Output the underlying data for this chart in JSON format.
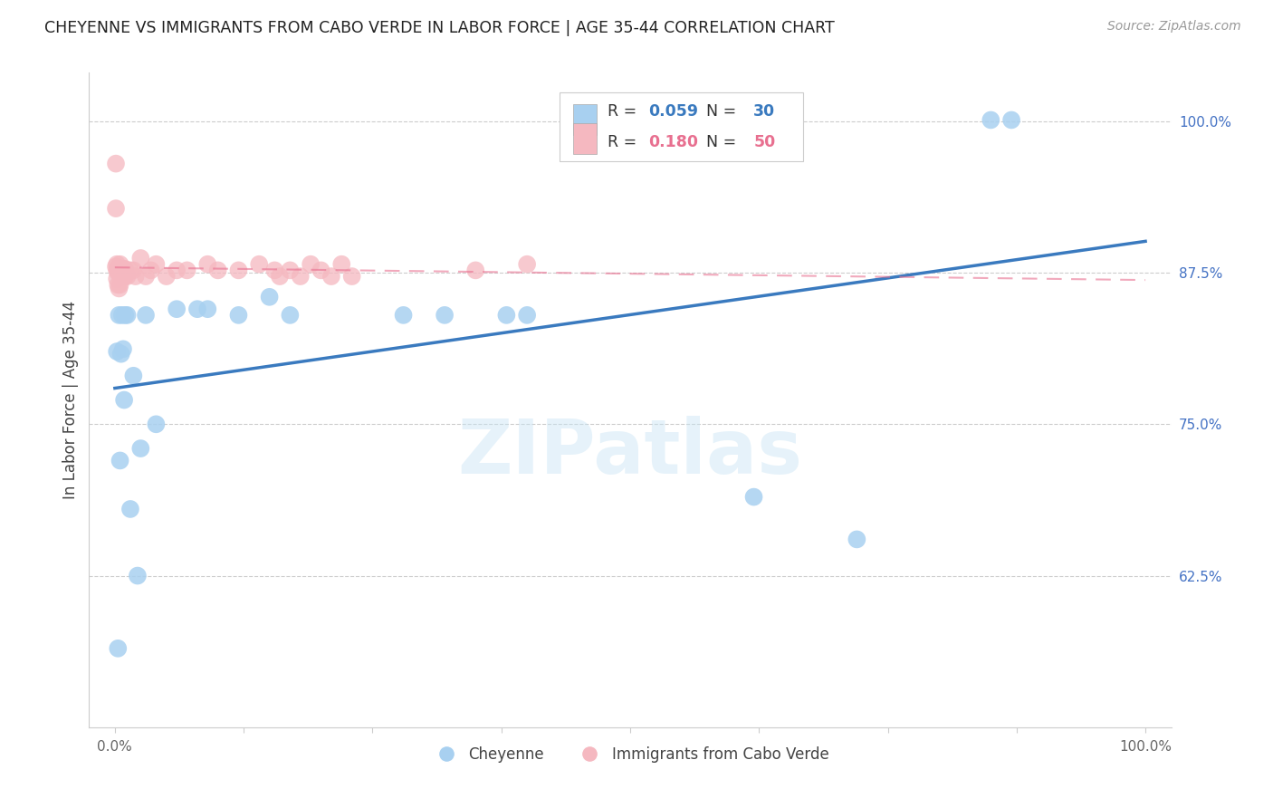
{
  "title": "CHEYENNE VS IMMIGRANTS FROM CABO VERDE IN LABOR FORCE | AGE 35-44 CORRELATION CHART",
  "source": "Source: ZipAtlas.com",
  "ylabel": "In Labor Force | Age 35-44",
  "legend_blue_R": "0.059",
  "legend_blue_N": "30",
  "legend_pink_R": "0.180",
  "legend_pink_N": "50",
  "blue_color": "#a8d0f0",
  "pink_color": "#f5b8c0",
  "blue_line_color": "#3a7abf",
  "pink_line_color": "#e87090",
  "watermark": "ZIPatlas",
  "blue_x": [
    0.002,
    0.003,
    0.004,
    0.005,
    0.006,
    0.007,
    0.008,
    0.009,
    0.01,
    0.012,
    0.015,
    0.018,
    0.022,
    0.025,
    0.03,
    0.04,
    0.06,
    0.08,
    0.09,
    0.12,
    0.15,
    0.17,
    0.28,
    0.32,
    0.38,
    0.4,
    0.62,
    0.72,
    0.85,
    0.87
  ],
  "blue_y": [
    0.81,
    0.565,
    0.84,
    0.72,
    0.808,
    0.84,
    0.812,
    0.77,
    0.84,
    0.84,
    0.68,
    0.79,
    0.625,
    0.73,
    0.84,
    0.75,
    0.845,
    0.845,
    0.845,
    0.84,
    0.855,
    0.84,
    0.84,
    0.84,
    0.84,
    0.84,
    0.69,
    0.655,
    1.001,
    1.001
  ],
  "pink_x": [
    0.001,
    0.001,
    0.001,
    0.002,
    0.002,
    0.002,
    0.003,
    0.003,
    0.003,
    0.004,
    0.004,
    0.005,
    0.005,
    0.005,
    0.006,
    0.006,
    0.007,
    0.007,
    0.008,
    0.008,
    0.009,
    0.009,
    0.01,
    0.01,
    0.012,
    0.015,
    0.018,
    0.02,
    0.025,
    0.03,
    0.035,
    0.04,
    0.05,
    0.06,
    0.07,
    0.09,
    0.1,
    0.12,
    0.14,
    0.155,
    0.16,
    0.17,
    0.18,
    0.19,
    0.2,
    0.21,
    0.22,
    0.23,
    0.35,
    0.4
  ],
  "pink_y": [
    0.965,
    0.928,
    0.88,
    0.882,
    0.877,
    0.87,
    0.878,
    0.875,
    0.865,
    0.878,
    0.862,
    0.882,
    0.877,
    0.865,
    0.877,
    0.872,
    0.878,
    0.872,
    0.877,
    0.872,
    0.878,
    0.872,
    0.878,
    0.872,
    0.872,
    0.877,
    0.877,
    0.872,
    0.887,
    0.872,
    0.877,
    0.882,
    0.872,
    0.877,
    0.877,
    0.882,
    0.877,
    0.877,
    0.882,
    0.877,
    0.872,
    0.877,
    0.872,
    0.882,
    0.877,
    0.872,
    0.882,
    0.872,
    0.877,
    0.882
  ]
}
